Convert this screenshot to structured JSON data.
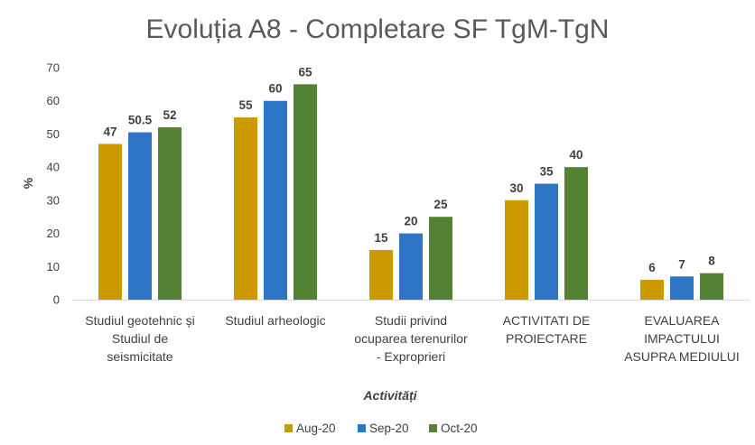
{
  "chart_data": {
    "type": "bar",
    "title": "Evoluția A8 - Completare SF TgM-TgN",
    "xlabel": "Activități",
    "ylabel": "%",
    "ylim": [
      0,
      70
    ],
    "yticks": [
      0,
      10,
      20,
      30,
      40,
      50,
      60,
      70
    ],
    "grid": false,
    "legend_position": "bottom",
    "categories": [
      [
        "Studiul geotehnic și",
        "Studiul de",
        "seismicitate"
      ],
      [
        "Studiul arheologic"
      ],
      [
        "Studii privind",
        "ocuparea terenurilor",
        "- Exproprieri"
      ],
      [
        "ACTIVITATI DE",
        "PROIECTARE"
      ],
      [
        "EVALUAREA",
        "IMPACTULUI",
        "ASUPRA MEDIULUI"
      ]
    ],
    "series": [
      {
        "name": "Aug-20",
        "color": "#CC9900",
        "values": [
          47,
          55,
          15,
          30,
          6
        ],
        "labels": [
          "47",
          "55",
          "15",
          "30",
          "6"
        ]
      },
      {
        "name": "Sep-20",
        "color": "#2E75C6",
        "values": [
          50.5,
          60,
          20,
          35,
          7
        ],
        "labels": [
          "50.5",
          "60",
          "20",
          "35",
          "7"
        ]
      },
      {
        "name": "Oct-20",
        "color": "#548235",
        "values": [
          52,
          65,
          25,
          40,
          8
        ],
        "labels": [
          "52",
          "65",
          "25",
          "40",
          "8"
        ]
      }
    ]
  }
}
